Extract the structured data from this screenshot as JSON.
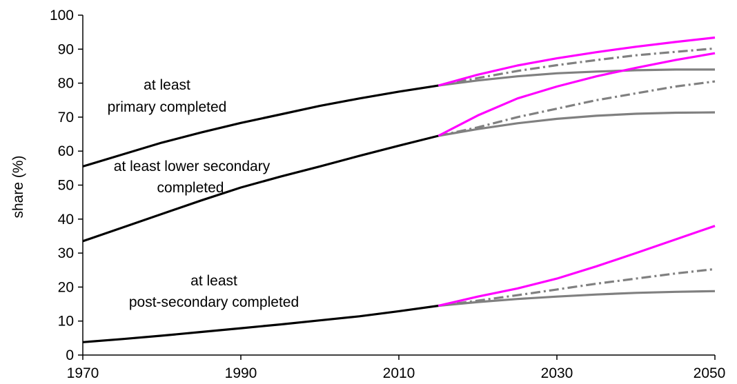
{
  "chart_data": {
    "type": "line",
    "title": "",
    "xlabel": "",
    "ylabel": "share (%)",
    "xlim": [
      1970,
      2050
    ],
    "ylim": [
      0,
      100
    ],
    "x_ticks": [
      "1970",
      "1990",
      "2010",
      "2030",
      "2050"
    ],
    "y_ticks": [
      "0",
      "10",
      "20",
      "30",
      "40",
      "50",
      "60",
      "70",
      "80",
      "90",
      "100"
    ],
    "grid": false,
    "legend": "none",
    "colors": {
      "historical": "#000000",
      "scenario_high": "#ff00ff",
      "scenario_mid": "#808080",
      "scenario_low": "#808080"
    },
    "annotations": [
      {
        "lines": [
          "at least",
          "primary completed"
        ]
      },
      {
        "lines": [
          "at least lower secondary",
          "completed"
        ]
      },
      {
        "lines": [
          "at least",
          "post-secondary completed"
        ]
      }
    ],
    "series": [
      {
        "group": "primary",
        "style": "historical",
        "x": [
          1970,
          1975,
          1980,
          1985,
          1990,
          1995,
          2000,
          2005,
          2010,
          2015
        ],
        "y": [
          55.5,
          59,
          62.5,
          65.5,
          68.3,
          70.8,
          73.3,
          75.5,
          77.5,
          79.3
        ]
      },
      {
        "group": "primary",
        "style": "scenario_high",
        "x": [
          2015,
          2020,
          2025,
          2030,
          2035,
          2040,
          2045,
          2050
        ],
        "y": [
          79.3,
          82.5,
          85.2,
          87.3,
          89.1,
          90.7,
          92.1,
          93.4
        ]
      },
      {
        "group": "primary",
        "style": "scenario_mid",
        "x": [
          2015,
          2020,
          2025,
          2030,
          2035,
          2040,
          2045,
          2050
        ],
        "y": [
          79.3,
          81.5,
          83.6,
          85.3,
          86.8,
          88.2,
          89.2,
          90.2
        ]
      },
      {
        "group": "primary",
        "style": "scenario_low",
        "x": [
          2015,
          2020,
          2025,
          2030,
          2035,
          2040,
          2045,
          2050
        ],
        "y": [
          79.3,
          80.8,
          82,
          82.9,
          83.4,
          83.8,
          84,
          84
        ]
      },
      {
        "group": "lower_secondary",
        "style": "historical",
        "x": [
          1970,
          1975,
          1980,
          1985,
          1990,
          1995,
          2000,
          2005,
          2010,
          2015
        ],
        "y": [
          33.5,
          37.5,
          41.5,
          45.5,
          49.3,
          52.5,
          55.5,
          58.6,
          61.6,
          64.5
        ]
      },
      {
        "group": "lower_secondary",
        "style": "scenario_high",
        "x": [
          2015,
          2020,
          2025,
          2030,
          2035,
          2040,
          2045,
          2050
        ],
        "y": [
          64.5,
          70.5,
          75.5,
          79,
          82,
          84.5,
          86.8,
          88.8
        ]
      },
      {
        "group": "lower_secondary",
        "style": "scenario_mid",
        "x": [
          2015,
          2020,
          2025,
          2030,
          2035,
          2040,
          2045,
          2050
        ],
        "y": [
          64.5,
          67,
          70,
          72.5,
          75,
          77,
          79,
          80.5
        ]
      },
      {
        "group": "lower_secondary",
        "style": "scenario_low",
        "x": [
          2015,
          2020,
          2025,
          2030,
          2035,
          2040,
          2045,
          2050
        ],
        "y": [
          64.5,
          66.5,
          68.2,
          69.5,
          70.4,
          71,
          71.3,
          71.4
        ]
      },
      {
        "group": "post_secondary",
        "style": "historical",
        "x": [
          1970,
          1975,
          1980,
          1985,
          1990,
          1995,
          2000,
          2005,
          2010,
          2015
        ],
        "y": [
          3.8,
          4.7,
          5.7,
          6.8,
          7.9,
          9,
          10.2,
          11.4,
          12.9,
          14.5
        ]
      },
      {
        "group": "post_secondary",
        "style": "scenario_high",
        "x": [
          2015,
          2020,
          2025,
          2030,
          2035,
          2040,
          2045,
          2050
        ],
        "y": [
          14.5,
          17.2,
          19.6,
          22.5,
          26.1,
          30,
          34,
          38
        ]
      },
      {
        "group": "post_secondary",
        "style": "scenario_mid",
        "x": [
          2015,
          2020,
          2025,
          2030,
          2035,
          2040,
          2045,
          2050
        ],
        "y": [
          14.5,
          16,
          17.6,
          19.3,
          21,
          22.5,
          24,
          25.3
        ]
      },
      {
        "group": "post_secondary",
        "style": "scenario_low",
        "x": [
          2015,
          2020,
          2025,
          2030,
          2035,
          2040,
          2045,
          2050
        ],
        "y": [
          14.5,
          15.6,
          16.5,
          17.2,
          17.8,
          18.3,
          18.6,
          18.8
        ]
      }
    ]
  }
}
